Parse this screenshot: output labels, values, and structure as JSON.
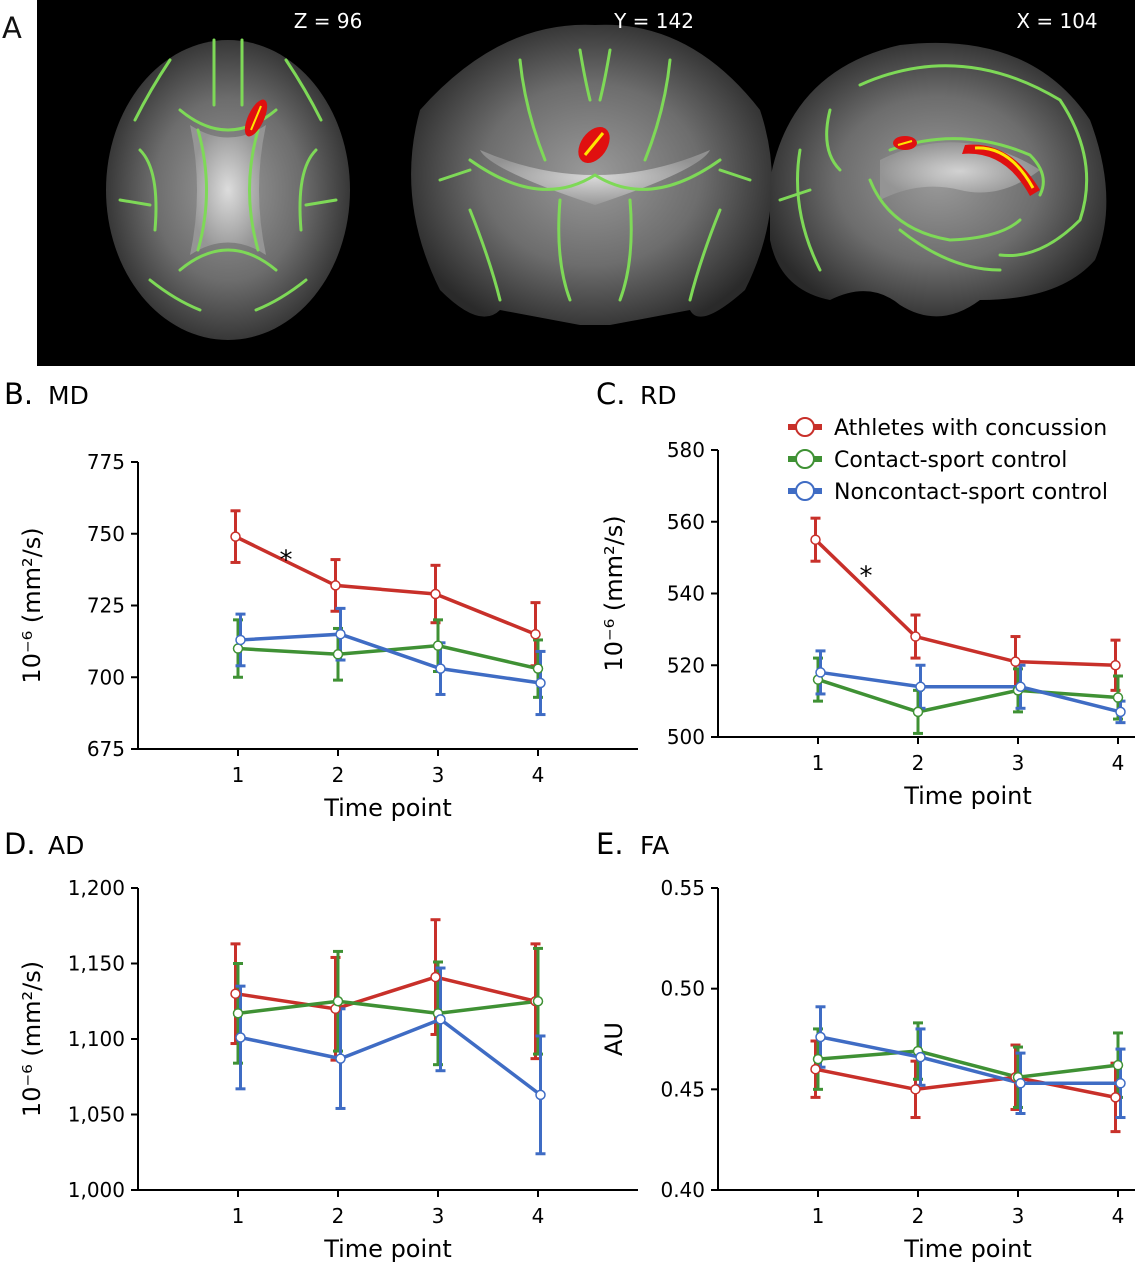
{
  "figure": {
    "panel_a": {
      "letter": "A",
      "slice_labels": [
        "Z = 96",
        "Y = 142",
        "X = 104"
      ]
    },
    "legend": {
      "entries": [
        "Athletes with concussion",
        "Contact-sport control",
        "Noncontact-sport control"
      ]
    }
  },
  "colors": {
    "concussion": "#c8302a",
    "contact": "#3f9134",
    "noncontact": "#3f6cc4",
    "skeleton": "#7ed957",
    "cluster_red": "#e01010",
    "cluster_yellow": "#ffe600"
  },
  "chart_data": [
    {
      "type": "line",
      "letter": "B.",
      "name": "MD",
      "xlabel": "Time point",
      "ylabel": "10⁻⁶ (mm²/s)",
      "x": [
        1,
        2,
        3,
        4
      ],
      "xlim": [
        0,
        5
      ],
      "ylim": [
        675,
        775
      ],
      "yticks": [
        675,
        700,
        725,
        750,
        775
      ],
      "ytick_labels": [
        "675",
        "700",
        "725",
        "750",
        "775"
      ],
      "series": [
        {
          "name": "Athletes with concussion",
          "color_key": "concussion",
          "values": [
            749,
            732,
            729,
            715
          ],
          "err": [
            9,
            9,
            10,
            11
          ]
        },
        {
          "name": "Contact-sport control",
          "color_key": "contact",
          "values": [
            710,
            708,
            711,
            703
          ],
          "err": [
            10,
            9,
            9,
            10
          ]
        },
        {
          "name": "Noncontact-sport control",
          "color_key": "noncontact",
          "values": [
            713,
            715,
            703,
            698
          ],
          "err": [
            9,
            9,
            9,
            11
          ]
        }
      ],
      "annotations": [
        {
          "text": "*",
          "x": 1.48,
          "y": 741
        }
      ]
    },
    {
      "type": "line",
      "letter": "C.",
      "name": "RD",
      "xlabel": "Time point",
      "ylabel": "10⁻⁶ (mm²/s)",
      "x": [
        1,
        2,
        3,
        4
      ],
      "xlim": [
        0,
        5
      ],
      "ylim": [
        500,
        580
      ],
      "yticks": [
        500,
        520,
        540,
        560,
        580
      ],
      "ytick_labels": [
        "500",
        "520",
        "540",
        "560",
        "580"
      ],
      "series": [
        {
          "name": "Athletes with concussion",
          "color_key": "concussion",
          "values": [
            555,
            528,
            521,
            520
          ],
          "err": [
            6,
            6,
            7,
            7
          ]
        },
        {
          "name": "Contact-sport control",
          "color_key": "contact",
          "values": [
            516,
            507,
            513,
            511
          ],
          "err": [
            6,
            6,
            6,
            6
          ]
        },
        {
          "name": "Noncontact-sport control",
          "color_key": "noncontact",
          "values": [
            518,
            514,
            514,
            507
          ],
          "err": [
            6,
            6,
            6,
            3
          ]
        }
      ],
      "annotations": [
        {
          "text": "*",
          "x": 1.48,
          "y": 545
        }
      ]
    },
    {
      "type": "line",
      "letter": "D.",
      "name": "AD",
      "xlabel": "Time point",
      "ylabel": "10⁻⁶ (mm²/s)",
      "x": [
        1,
        2,
        3,
        4
      ],
      "xlim": [
        0,
        5
      ],
      "ylim": [
        1000,
        1200
      ],
      "yticks": [
        1000,
        1050,
        1100,
        1150,
        1200
      ],
      "ytick_labels": [
        "1,000",
        "1,050",
        "1,100",
        "1,150",
        "1,200"
      ],
      "series": [
        {
          "name": "Athletes with concussion",
          "color_key": "concussion",
          "values": [
            1130,
            1120,
            1141,
            1125
          ],
          "err": [
            33,
            34,
            38,
            38
          ]
        },
        {
          "name": "Contact-sport control",
          "color_key": "contact",
          "values": [
            1117,
            1125,
            1117,
            1125
          ],
          "err": [
            33,
            33,
            34,
            35
          ]
        },
        {
          "name": "Noncontact-sport control",
          "color_key": "noncontact",
          "values": [
            1101,
            1087,
            1113,
            1063
          ],
          "err": [
            34,
            33,
            34,
            39
          ]
        }
      ],
      "annotations": []
    },
    {
      "type": "line",
      "letter": "E.",
      "name": "FA",
      "xlabel": "Time point",
      "ylabel": "AU",
      "x": [
        1,
        2,
        3,
        4
      ],
      "xlim": [
        0,
        5
      ],
      "ylim": [
        0.4,
        0.55
      ],
      "yticks": [
        0.4,
        0.45,
        0.5,
        0.55
      ],
      "ytick_labels": [
        "0.40",
        "0.45",
        "0.50",
        "0.55"
      ],
      "series": [
        {
          "name": "Athletes with concussion",
          "color_key": "concussion",
          "values": [
            0.46,
            0.45,
            0.456,
            0.446
          ],
          "err": [
            0.014,
            0.014,
            0.016,
            0.017
          ]
        },
        {
          "name": "Contact-sport control",
          "color_key": "contact",
          "values": [
            0.465,
            0.469,
            0.456,
            0.462
          ],
          "err": [
            0.015,
            0.014,
            0.015,
            0.016
          ]
        },
        {
          "name": "Noncontact-sport control",
          "color_key": "noncontact",
          "values": [
            0.476,
            0.466,
            0.453,
            0.453
          ],
          "err": [
            0.015,
            0.014,
            0.015,
            0.017
          ]
        }
      ],
      "annotations": []
    }
  ]
}
